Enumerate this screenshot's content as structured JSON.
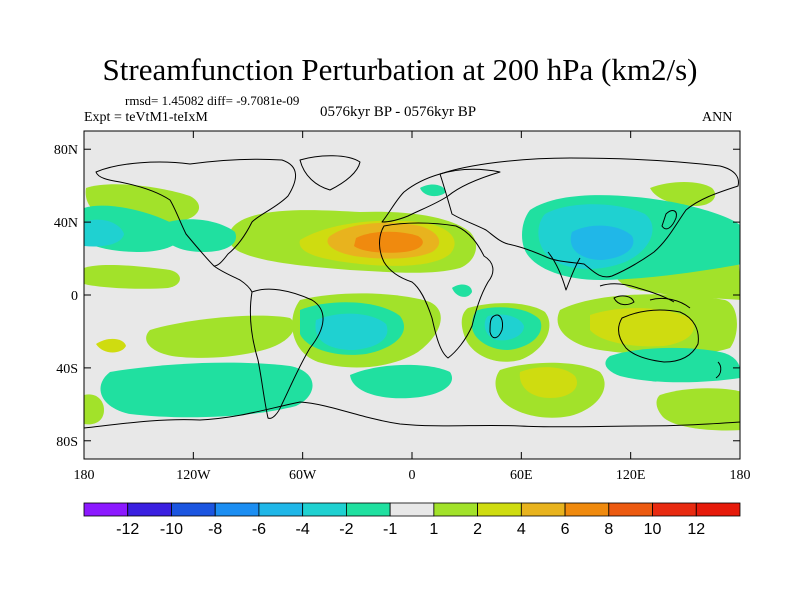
{
  "chart_data": {
    "type": "heatmap",
    "title": "Streamfunction Perturbation at 200 hPa (km2/s)",
    "rmsd_line": "rmsd= 1.45082 diff= -9.7081e-09",
    "experiment": "Expt = teVtM1-teIxM",
    "period": "0576kyr BP - 0576kyr BP",
    "season": "ANN",
    "x_ticks": [
      "180",
      "120W",
      "60W",
      "0",
      "60E",
      "120E",
      "180"
    ],
    "x_tick_values": [
      -180,
      -120,
      -60,
      0,
      60,
      120,
      180
    ],
    "y_ticks": [
      "80N",
      "40N",
      "0",
      "40S",
      "80S"
    ],
    "y_tick_values": [
      80,
      40,
      0,
      -40,
      -80
    ],
    "xlim": [
      -180,
      180
    ],
    "ylim": [
      -90,
      90
    ],
    "colorbar": {
      "labels": [
        "-12",
        "-10",
        "-8",
        "-6",
        "-4",
        "-2",
        "-1",
        "1",
        "2",
        "4",
        "6",
        "8",
        "10",
        "12"
      ],
      "colors": [
        "#8c19ff",
        "#3a1fe0",
        "#1b55e0",
        "#1c8ef2",
        "#20b7e8",
        "#1fd1d1",
        "#20e0a0",
        "#e8e8e8",
        "#a2e22a",
        "#cfdc10",
        "#e8b31e",
        "#f08a0e",
        "#ec5a10",
        "#e82a10",
        "#e61a0a"
      ]
    },
    "anomaly_regions": [
      {
        "name": "north-africa-positive",
        "lon": -10,
        "lat": 32,
        "peak": 8
      },
      {
        "name": "asia-negative",
        "lon": 95,
        "lat": 32,
        "peak": -4
      },
      {
        "name": "north-atlantic-positive",
        "lon": -55,
        "lat": 38,
        "peak": 2
      },
      {
        "name": "east-pacific-negative",
        "lon": -160,
        "lat": 33,
        "peak": -2
      },
      {
        "name": "south-atlantic-negative",
        "lon": -30,
        "lat": -25,
        "peak": -3
      },
      {
        "name": "indian-ocean-negative",
        "lon": 60,
        "lat": -18,
        "peak": -2
      },
      {
        "name": "australia-positive",
        "lon": 120,
        "lat": -15,
        "peak": 4
      },
      {
        "name": "south-indian-positive",
        "lon": 80,
        "lat": -48,
        "peak": 4
      },
      {
        "name": "southern-ocean-negative",
        "lon": -80,
        "lat": -58,
        "peak": -2
      }
    ]
  }
}
